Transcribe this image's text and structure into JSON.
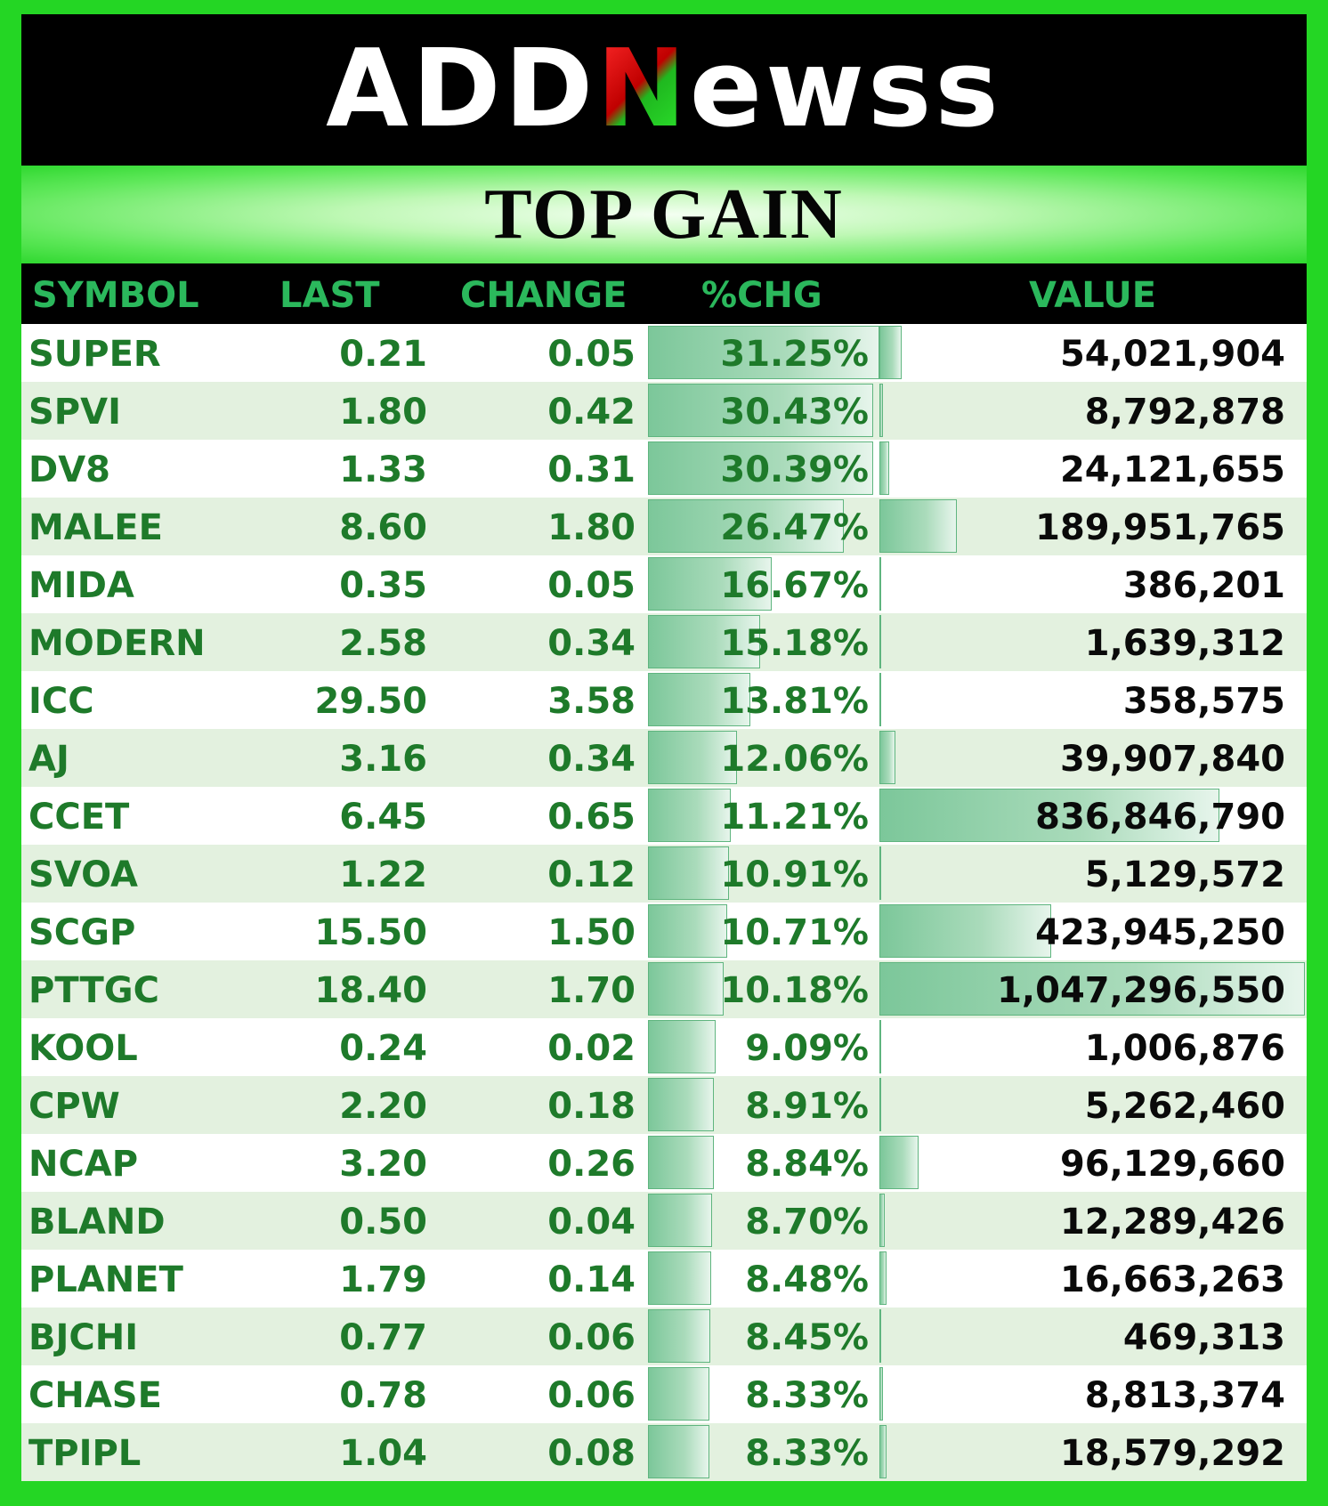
{
  "brand": {
    "logo_pre": "ADD",
    "logo_n": "N",
    "logo_post": "ewss"
  },
  "title": "TOP GAIN",
  "columns": {
    "symbol": "SYMBOL",
    "last": "LAST",
    "change": "CHANGE",
    "pct": "%CHG",
    "value": "VALUE"
  },
  "colors": {
    "frame": "#24d624",
    "header_text": "#2bb85c",
    "row_text": "#1e7a2a",
    "alt_row": "#e3f1df",
    "bar": "#7cc79a"
  },
  "rows": [
    {
      "symbol": "SUPER",
      "last": "0.21",
      "change": "0.05",
      "pct": "31.25%",
      "value": "54,021,904",
      "pct_num": 31.25,
      "value_num": 54021904
    },
    {
      "symbol": "SPVI",
      "last": "1.80",
      "change": "0.42",
      "pct": "30.43%",
      "value": "8,792,878",
      "pct_num": 30.43,
      "value_num": 8792878
    },
    {
      "symbol": "DV8",
      "last": "1.33",
      "change": "0.31",
      "pct": "30.39%",
      "value": "24,121,655",
      "pct_num": 30.39,
      "value_num": 24121655
    },
    {
      "symbol": "MALEE",
      "last": "8.60",
      "change": "1.80",
      "pct": "26.47%",
      "value": "189,951,765",
      "pct_num": 26.47,
      "value_num": 189951765
    },
    {
      "symbol": "MIDA",
      "last": "0.35",
      "change": "0.05",
      "pct": "16.67%",
      "value": "386,201",
      "pct_num": 16.67,
      "value_num": 386201
    },
    {
      "symbol": "MODERN",
      "last": "2.58",
      "change": "0.34",
      "pct": "15.18%",
      "value": "1,639,312",
      "pct_num": 15.18,
      "value_num": 1639312
    },
    {
      "symbol": "ICC",
      "last": "29.50",
      "change": "3.58",
      "pct": "13.81%",
      "value": "358,575",
      "pct_num": 13.81,
      "value_num": 358575
    },
    {
      "symbol": "AJ",
      "last": "3.16",
      "change": "0.34",
      "pct": "12.06%",
      "value": "39,907,840",
      "pct_num": 12.06,
      "value_num": 39907840
    },
    {
      "symbol": "CCET",
      "last": "6.45",
      "change": "0.65",
      "pct": "11.21%",
      "value": "836,846,790",
      "pct_num": 11.21,
      "value_num": 836846790
    },
    {
      "symbol": "SVOA",
      "last": "1.22",
      "change": "0.12",
      "pct": "10.91%",
      "value": "5,129,572",
      "pct_num": 10.91,
      "value_num": 5129572
    },
    {
      "symbol": "SCGP",
      "last": "15.50",
      "change": "1.50",
      "pct": "10.71%",
      "value": "423,945,250",
      "pct_num": 10.71,
      "value_num": 423945250
    },
    {
      "symbol": "PTTGC",
      "last": "18.40",
      "change": "1.70",
      "pct": "10.18%",
      "value": "1,047,296,550",
      "pct_num": 10.18,
      "value_num": 1047296550
    },
    {
      "symbol": "KOOL",
      "last": "0.24",
      "change": "0.02",
      "pct": "9.09%",
      "value": "1,006,876",
      "pct_num": 9.09,
      "value_num": 1006876
    },
    {
      "symbol": "CPW",
      "last": "2.20",
      "change": "0.18",
      "pct": "8.91%",
      "value": "5,262,460",
      "pct_num": 8.91,
      "value_num": 5262460
    },
    {
      "symbol": "NCAP",
      "last": "3.20",
      "change": "0.26",
      "pct": "8.84%",
      "value": "96,129,660",
      "pct_num": 8.84,
      "value_num": 96129660
    },
    {
      "symbol": "BLAND",
      "last": "0.50",
      "change": "0.04",
      "pct": "8.70%",
      "value": "12,289,426",
      "pct_num": 8.7,
      "value_num": 12289426
    },
    {
      "symbol": "PLANET",
      "last": "1.79",
      "change": "0.14",
      "pct": "8.48%",
      "value": "16,663,263",
      "pct_num": 8.48,
      "value_num": 16663263
    },
    {
      "symbol": "BJCHI",
      "last": "0.77",
      "change": "0.06",
      "pct": "8.45%",
      "value": "469,313",
      "pct_num": 8.45,
      "value_num": 469313
    },
    {
      "symbol": "CHASE",
      "last": "0.78",
      "change": "0.06",
      "pct": "8.33%",
      "value": "8,813,374",
      "pct_num": 8.33,
      "value_num": 8813374
    },
    {
      "symbol": "TPIPL",
      "last": "1.04",
      "change": "0.08",
      "pct": "8.33%",
      "value": "18,579,292",
      "pct_num": 8.33,
      "value_num": 18579292
    }
  ]
}
